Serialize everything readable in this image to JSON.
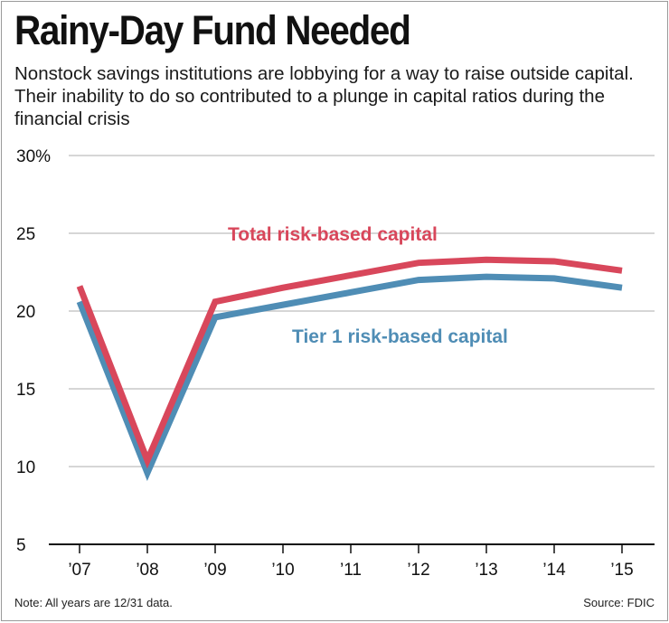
{
  "title": "Rainy-Day Fund Needed",
  "subtitle": "Nonstock savings institutions are lobbying for a way to raise outside capital. Their inability to do so contributed to a plunge in capital ratios during the financial crisis",
  "note": "Note: All years are 12/31 data.",
  "source": "Source: FDIC",
  "chart_data": {
    "type": "line",
    "categories": [
      "’07",
      "’08",
      "’09",
      "’10",
      "’11",
      "’12",
      "’13",
      "’14",
      "’15"
    ],
    "y_ticks": [
      "30%",
      "25",
      "20",
      "15",
      "10",
      "5"
    ],
    "ylim": [
      5,
      30
    ],
    "grid": true,
    "series": [
      {
        "name": "Total risk-based capital",
        "color": "#d8475b",
        "values": [
          21.6,
          10.4,
          20.6,
          21.5,
          22.3,
          23.1,
          23.3,
          23.2,
          22.6
        ]
      },
      {
        "name": "Tier 1 risk-based capital",
        "color": "#4f8db5",
        "values": [
          20.6,
          9.6,
          19.6,
          20.4,
          21.2,
          22.0,
          22.2,
          22.1,
          21.5
        ]
      }
    ]
  }
}
